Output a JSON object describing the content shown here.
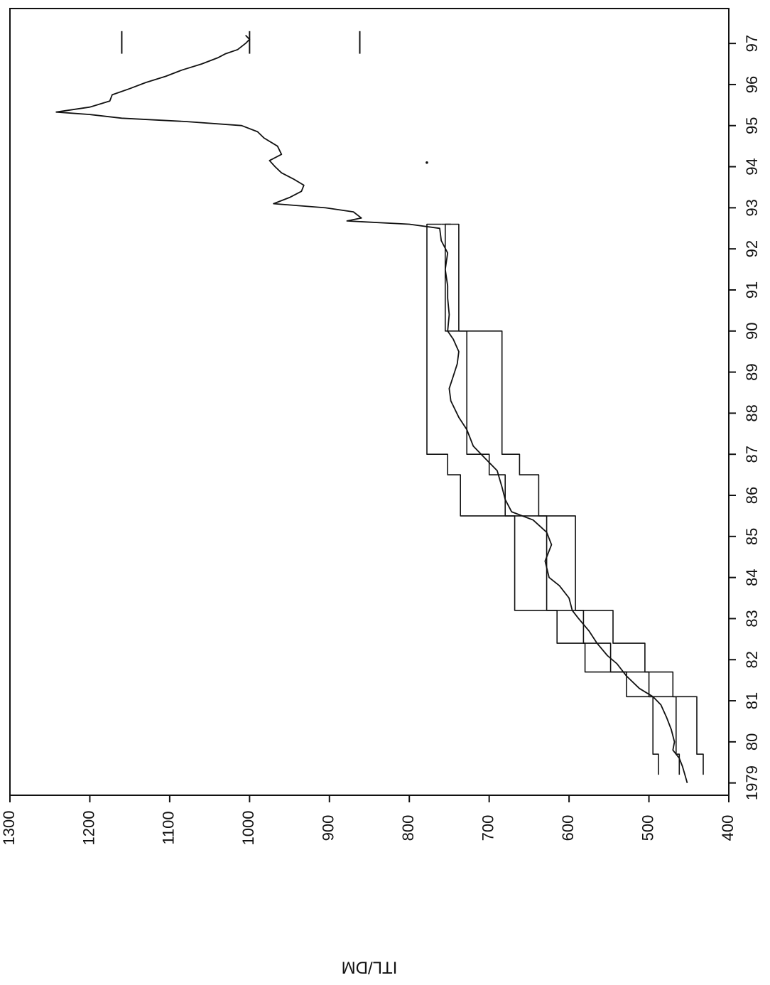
{
  "chart_data": {
    "type": "line",
    "orientation": "rotated-90-clockwise",
    "ylabel": "ITL/DM",
    "xlabel": "",
    "ylim": [
      400,
      1300
    ],
    "y_ticks": [
      400,
      500,
      600,
      700,
      800,
      900,
      1000,
      1100,
      1200,
      1300
    ],
    "xlim": [
      1978.7,
      1997.85
    ],
    "x_ticks": [
      {
        "value": 1979,
        "label": "1979"
      },
      {
        "value": 1980,
        "label": "80"
      },
      {
        "value": 1981,
        "label": "81"
      },
      {
        "value": 1982,
        "label": "82"
      },
      {
        "value": 1983,
        "label": "83"
      },
      {
        "value": 1984,
        "label": "84"
      },
      {
        "value": 1985,
        "label": "85"
      },
      {
        "value": 1986,
        "label": "86"
      },
      {
        "value": 1987,
        "label": "87"
      },
      {
        "value": 1988,
        "label": "88"
      },
      {
        "value": 1989,
        "label": "89"
      },
      {
        "value": 1990,
        "label": "90"
      },
      {
        "value": 1991,
        "label": "91"
      },
      {
        "value": 1992,
        "label": "92"
      },
      {
        "value": 1993,
        "label": "93"
      },
      {
        "value": 1994,
        "label": "94"
      },
      {
        "value": 1995,
        "label": "95"
      },
      {
        "value": 1996,
        "label": "96"
      },
      {
        "value": 1997,
        "label": "97"
      }
    ],
    "grid": false,
    "series": [
      {
        "kind": "exchange-rate",
        "points": [
          [
            1979.0,
            452
          ],
          [
            1979.2,
            455
          ],
          [
            1979.4,
            458
          ],
          [
            1979.6,
            462
          ],
          [
            1979.8,
            470
          ],
          [
            1980.0,
            468
          ],
          [
            1980.3,
            472
          ],
          [
            1980.6,
            478
          ],
          [
            1980.9,
            485
          ],
          [
            1981.1,
            495
          ],
          [
            1981.3,
            512
          ],
          [
            1981.6,
            528
          ],
          [
            1981.9,
            540
          ],
          [
            1982.1,
            552
          ],
          [
            1982.4,
            565
          ],
          [
            1982.7,
            575
          ],
          [
            1983.0,
            588
          ],
          [
            1983.2,
            596
          ],
          [
            1983.5,
            600
          ],
          [
            1983.8,
            612
          ],
          [
            1984.0,
            625
          ],
          [
            1984.4,
            630
          ],
          [
            1984.8,
            622
          ],
          [
            1985.1,
            628
          ],
          [
            1985.4,
            645
          ],
          [
            1985.6,
            672
          ],
          [
            1985.9,
            680
          ],
          [
            1986.2,
            684
          ],
          [
            1986.6,
            690
          ],
          [
            1986.9,
            705
          ],
          [
            1987.2,
            720
          ],
          [
            1987.6,
            728
          ],
          [
            1987.9,
            738
          ],
          [
            1988.3,
            748
          ],
          [
            1988.6,
            750
          ],
          [
            1988.9,
            745
          ],
          [
            1989.2,
            740
          ],
          [
            1989.5,
            738
          ],
          [
            1989.8,
            745
          ],
          [
            1990.0,
            752
          ],
          [
            1990.4,
            750
          ],
          [
            1990.8,
            752
          ],
          [
            1991.1,
            752
          ],
          [
            1991.5,
            755
          ],
          [
            1991.9,
            752
          ],
          [
            1992.2,
            760
          ],
          [
            1992.5,
            762
          ],
          [
            1992.6,
            800
          ],
          [
            1992.68,
            878
          ],
          [
            1992.75,
            860
          ],
          [
            1992.9,
            870
          ],
          [
            1993.0,
            905
          ],
          [
            1993.1,
            970
          ],
          [
            1993.25,
            950
          ],
          [
            1993.4,
            935
          ],
          [
            1993.55,
            932
          ],
          [
            1993.7,
            945
          ],
          [
            1993.85,
            960
          ],
          [
            1994.0,
            968
          ],
          [
            1994.15,
            975
          ],
          [
            1994.3,
            960
          ],
          [
            1994.5,
            965
          ],
          [
            1994.7,
            982
          ],
          [
            1994.85,
            990
          ],
          [
            1995.0,
            1010
          ],
          [
            1995.1,
            1080
          ],
          [
            1995.18,
            1160
          ],
          [
            1995.27,
            1200
          ],
          [
            1995.33,
            1242
          ],
          [
            1995.45,
            1200
          ],
          [
            1995.6,
            1175
          ],
          [
            1995.75,
            1172
          ],
          [
            1995.9,
            1150
          ],
          [
            1996.05,
            1130
          ],
          [
            1996.2,
            1105
          ],
          [
            1996.35,
            1085
          ],
          [
            1996.5,
            1060
          ],
          [
            1996.65,
            1040
          ],
          [
            1996.75,
            1030
          ],
          [
            1996.85,
            1015
          ],
          [
            1997.0,
            1005
          ],
          [
            1997.1,
            1000
          ],
          [
            1997.2,
            1005
          ]
        ]
      },
      {
        "kind": "upper-band",
        "points": [
          [
            1979.2,
            488
          ],
          [
            1979.7,
            488
          ],
          [
            1979.7,
            495
          ],
          [
            1981.1,
            495
          ],
          [
            1981.1,
            528
          ],
          [
            1981.7,
            528
          ],
          [
            1981.7,
            580
          ],
          [
            1982.4,
            580
          ],
          [
            1982.4,
            615
          ],
          [
            1983.2,
            615
          ],
          [
            1983.2,
            668
          ],
          [
            1985.5,
            668
          ],
          [
            1985.5,
            736
          ],
          [
            1986.5,
            736
          ],
          [
            1986.5,
            752
          ],
          [
            1987.0,
            752
          ],
          [
            1987.0,
            778
          ],
          [
            1992.6,
            778
          ],
          [
            1992.6,
            760
          ]
        ]
      },
      {
        "kind": "central-rate",
        "points": [
          [
            1979.2,
            462
          ],
          [
            1979.7,
            462
          ],
          [
            1979.7,
            466
          ],
          [
            1981.1,
            466
          ],
          [
            1981.1,
            500
          ],
          [
            1981.7,
            500
          ],
          [
            1981.7,
            548
          ],
          [
            1982.4,
            548
          ],
          [
            1982.4,
            582
          ],
          [
            1983.2,
            582
          ],
          [
            1983.2,
            628
          ],
          [
            1985.5,
            628
          ],
          [
            1985.5,
            680
          ],
          [
            1986.5,
            680
          ],
          [
            1986.5,
            700
          ],
          [
            1987.0,
            700
          ],
          [
            1987.0,
            728
          ],
          [
            1990.0,
            728
          ],
          [
            1990.0,
            755
          ],
          [
            1992.6,
            755
          ],
          [
            1992.6,
            748
          ]
        ]
      },
      {
        "kind": "lower-band",
        "points": [
          [
            1979.2,
            432
          ],
          [
            1979.7,
            432
          ],
          [
            1979.7,
            440
          ],
          [
            1981.1,
            440
          ],
          [
            1981.1,
            470
          ],
          [
            1981.7,
            470
          ],
          [
            1981.7,
            505
          ],
          [
            1982.4,
            505
          ],
          [
            1982.4,
            545
          ],
          [
            1983.2,
            545
          ],
          [
            1983.2,
            592
          ],
          [
            1985.5,
            592
          ],
          [
            1985.5,
            638
          ],
          [
            1986.5,
            638
          ],
          [
            1986.5,
            662
          ],
          [
            1987.0,
            662
          ],
          [
            1987.0,
            684
          ],
          [
            1990.0,
            684
          ],
          [
            1990.0,
            738
          ],
          [
            1992.6,
            738
          ],
          [
            1992.6,
            760
          ]
        ]
      }
    ],
    "reference_marks": [
      {
        "x_from": 1996.75,
        "x_to": 1997.3,
        "y": 1160
      },
      {
        "x_from": 1996.75,
        "x_to": 1997.3,
        "y": 1000
      },
      {
        "x_from": 1996.75,
        "x_to": 1997.3,
        "y": 862
      }
    ],
    "stray_points": [
      {
        "x": 1994.1,
        "y": 778
      }
    ]
  }
}
